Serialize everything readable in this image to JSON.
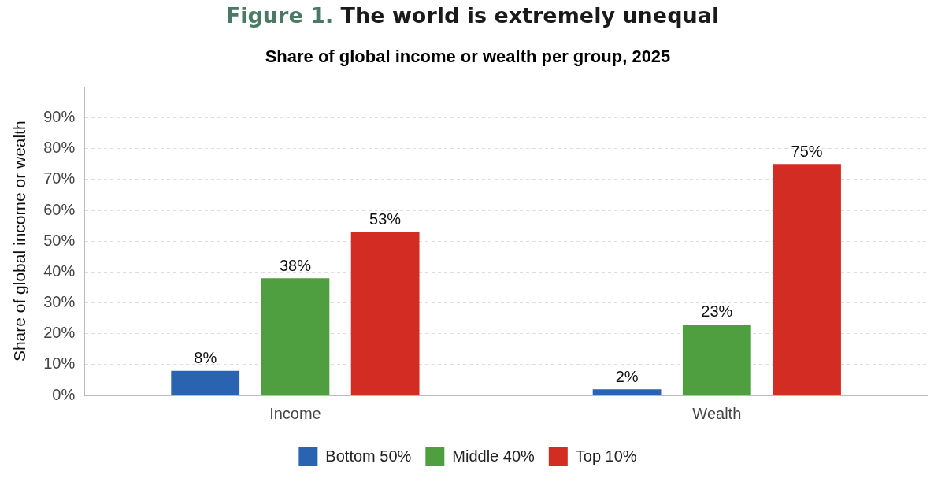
{
  "chart_data": {
    "type": "bar",
    "title": "Figure 1. The world is extremely unequal",
    "subtitle": "Share of global income or wealth per group, 2025",
    "ylabel": "Share of global income or wealth",
    "categories": [
      "Income",
      "Wealth"
    ],
    "series": [
      {
        "name": "Bottom 50%",
        "color": "#2a64b0",
        "values": [
          8,
          2
        ],
        "value_labels": [
          "8%",
          "2%"
        ]
      },
      {
        "name": "Middle 40%",
        "color": "#4f9e3f",
        "values": [
          38,
          23
        ],
        "value_labels": [
          "38%",
          "23%"
        ]
      },
      {
        "name": "Top 10%",
        "color": "#d22c23",
        "values": [
          53,
          75
        ],
        "value_labels": [
          "53%",
          "75%"
        ]
      }
    ],
    "ylim": [
      0,
      100
    ],
    "yticks": [
      {
        "value": 0,
        "label": "0%"
      },
      {
        "value": 10,
        "label": "10%"
      },
      {
        "value": 20,
        "label": "20%"
      },
      {
        "value": 30,
        "label": "30%"
      },
      {
        "value": 40,
        "label": "40%"
      },
      {
        "value": 50,
        "label": "50%"
      },
      {
        "value": 60,
        "label": "60%"
      },
      {
        "value": 70,
        "label": "70%"
      },
      {
        "value": 80,
        "label": "80%"
      },
      {
        "value": 90,
        "label": "90%"
      }
    ],
    "grid": "y",
    "legend": "bottom"
  }
}
